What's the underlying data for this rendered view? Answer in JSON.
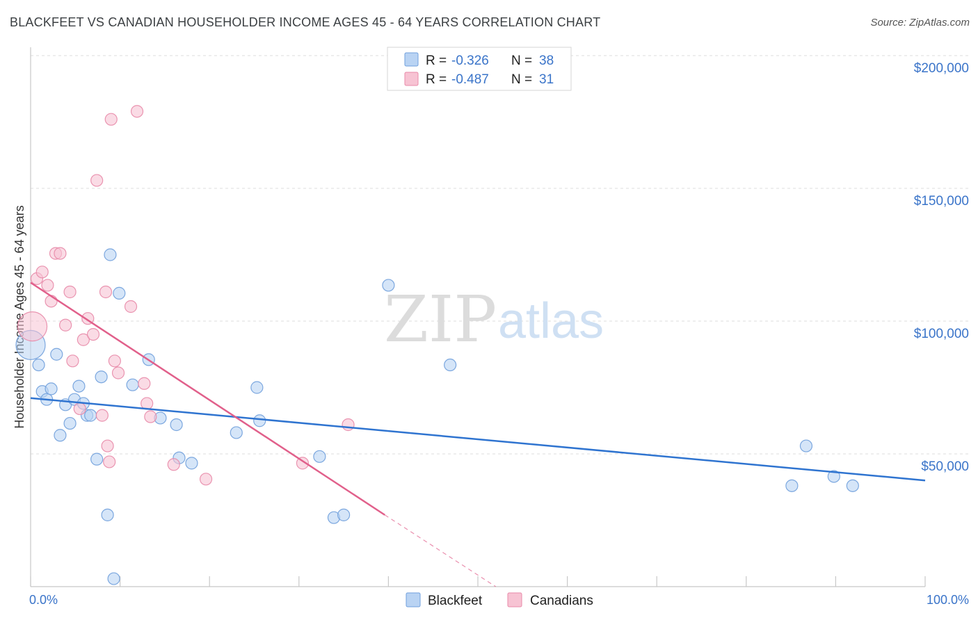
{
  "header": {
    "title": "BLACKFEET VS CANADIAN HOUSEHOLDER INCOME AGES 45 - 64 YEARS CORRELATION CHART",
    "source": "Source: ZipAtlas.com"
  },
  "watermark": {
    "zip": "ZIP",
    "atlas": "atlas"
  },
  "legend": {
    "rows": [
      {
        "r_label": "R =",
        "r_value": "-0.326",
        "n_label": "N =",
        "n_value": "38",
        "color": "#b9d3f3",
        "edge": "#6f9fdc"
      },
      {
        "r_label": "R =",
        "r_value": "-0.487",
        "n_label": "N =",
        "n_value": "31",
        "color": "#f7c3d3",
        "edge": "#e889a8"
      }
    ]
  },
  "bottom_legend": [
    {
      "label": "Blackfeet",
      "color": "#b9d3f3",
      "edge": "#6f9fdc"
    },
    {
      "label": "Canadians",
      "color": "#f7c3d3",
      "edge": "#e889a8"
    }
  ],
  "chart_data": {
    "type": "scatter",
    "title": "BLACKFEET VS CANADIAN HOUSEHOLDER INCOME AGES 45 - 64 YEARS CORRELATION CHART",
    "xlabel": "",
    "ylabel": "Householder Income Ages 45 - 64 years",
    "xlim": [
      0,
      100
    ],
    "ylim": [
      0,
      205000
    ],
    "x_tick_labels": [
      "0.0%",
      "100.0%"
    ],
    "y_ticks": [
      50000,
      100000,
      150000,
      200000
    ],
    "y_tick_labels": [
      "$50,000",
      "$100,000",
      "$150,000",
      "$200,000"
    ],
    "grid": true,
    "series": [
      {
        "name": "Blackfeet",
        "color": "#b9d3f3",
        "edge": "#6f9fdc",
        "line_color": "#2f74d0",
        "trend": {
          "x0": 0,
          "y0": 71000,
          "x1": 100,
          "y1": 40000
        },
        "points": [
          {
            "x": 0.0,
            "y": 91000,
            "big": true
          },
          {
            "x": 0.9,
            "y": 83500
          },
          {
            "x": 1.3,
            "y": 73500
          },
          {
            "x": 1.8,
            "y": 70500
          },
          {
            "x": 2.3,
            "y": 74500
          },
          {
            "x": 2.9,
            "y": 87500
          },
          {
            "x": 3.3,
            "y": 57000
          },
          {
            "x": 3.9,
            "y": 68500
          },
          {
            "x": 4.4,
            "y": 61500
          },
          {
            "x": 4.9,
            "y": 70500
          },
          {
            "x": 5.4,
            "y": 75500
          },
          {
            "x": 5.9,
            "y": 69000
          },
          {
            "x": 6.3,
            "y": 64500
          },
          {
            "x": 6.7,
            "y": 64500
          },
          {
            "x": 7.4,
            "y": 48000
          },
          {
            "x": 7.9,
            "y": 79000
          },
          {
            "x": 8.6,
            "y": 27000
          },
          {
            "x": 8.9,
            "y": 125000
          },
          {
            "x": 9.3,
            "y": 3000
          },
          {
            "x": 9.9,
            "y": 110500
          },
          {
            "x": 11.4,
            "y": 76000
          },
          {
            "x": 13.2,
            "y": 85500
          },
          {
            "x": 14.5,
            "y": 63500
          },
          {
            "x": 16.3,
            "y": 61000
          },
          {
            "x": 16.6,
            "y": 48500
          },
          {
            "x": 18.0,
            "y": 46500
          },
          {
            "x": 23.0,
            "y": 58000
          },
          {
            "x": 25.3,
            "y": 75000
          },
          {
            "x": 25.6,
            "y": 62500
          },
          {
            "x": 32.3,
            "y": 49000
          },
          {
            "x": 33.9,
            "y": 26000
          },
          {
            "x": 35.0,
            "y": 27000
          },
          {
            "x": 40.0,
            "y": 113500
          },
          {
            "x": 46.9,
            "y": 83500
          },
          {
            "x": 85.1,
            "y": 38000
          },
          {
            "x": 86.7,
            "y": 53000
          },
          {
            "x": 89.8,
            "y": 41500
          },
          {
            "x": 91.9,
            "y": 38000
          }
        ]
      },
      {
        "name": "Canadians",
        "color": "#f7c3d3",
        "edge": "#e889a8",
        "line_color": "#e1608b",
        "trend": {
          "x0": 0,
          "y0": 114500,
          "x1": 39.6,
          "y1": 27000
        },
        "trend_extension": {
          "x0": 39.6,
          "y0": 27000,
          "x1": 52,
          "y1": 0
        },
        "points": [
          {
            "x": 0.2,
            "y": 98000,
            "big": true
          },
          {
            "x": 0.7,
            "y": 116000
          },
          {
            "x": 1.3,
            "y": 118500
          },
          {
            "x": 1.9,
            "y": 113500
          },
          {
            "x": 2.3,
            "y": 107500
          },
          {
            "x": 2.8,
            "y": 125500
          },
          {
            "x": 3.3,
            "y": 125500
          },
          {
            "x": 3.9,
            "y": 98500
          },
          {
            "x": 4.4,
            "y": 111000
          },
          {
            "x": 4.7,
            "y": 85000
          },
          {
            "x": 5.5,
            "y": 67000
          },
          {
            "x": 5.9,
            "y": 93000
          },
          {
            "x": 6.4,
            "y": 101000
          },
          {
            "x": 7.0,
            "y": 95000
          },
          {
            "x": 7.4,
            "y": 153000
          },
          {
            "x": 8.0,
            "y": 64500
          },
          {
            "x": 8.4,
            "y": 111000
          },
          {
            "x": 8.6,
            "y": 53000
          },
          {
            "x": 8.8,
            "y": 47000
          },
          {
            "x": 9.0,
            "y": 176000
          },
          {
            "x": 9.4,
            "y": 85000
          },
          {
            "x": 9.8,
            "y": 80500
          },
          {
            "x": 11.2,
            "y": 105500
          },
          {
            "x": 11.9,
            "y": 179000
          },
          {
            "x": 12.7,
            "y": 76500
          },
          {
            "x": 13.0,
            "y": 69000
          },
          {
            "x": 13.4,
            "y": 64000
          },
          {
            "x": 16.0,
            "y": 46000
          },
          {
            "x": 19.6,
            "y": 40500
          },
          {
            "x": 30.4,
            "y": 46500
          },
          {
            "x": 35.5,
            "y": 61000
          }
        ]
      }
    ]
  }
}
